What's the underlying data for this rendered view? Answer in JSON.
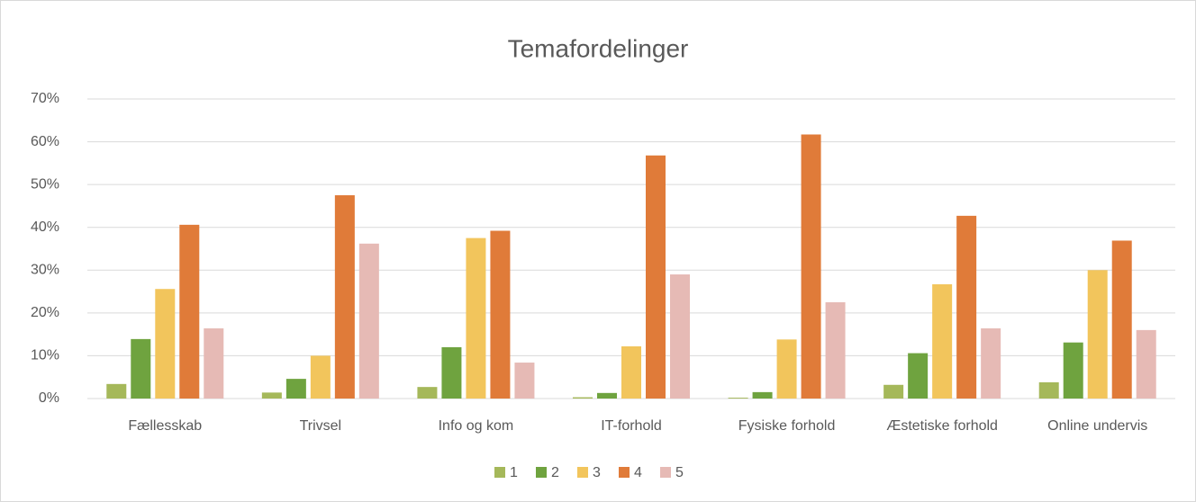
{
  "chart_data": {
    "type": "bar",
    "title": "Temafordelinger",
    "categories": [
      "Fællesskab",
      "Trivsel",
      "Info og kom",
      "IT-forhold",
      "Fysiske forhold",
      "Æstetiske forhold",
      "Online undervis"
    ],
    "series": [
      {
        "name": "1",
        "color": "#a5b85a",
        "values": [
          3.4,
          1.4,
          2.7,
          0.3,
          0.2,
          3.2,
          3.8
        ]
      },
      {
        "name": "2",
        "color": "#6fa33f",
        "values": [
          13.9,
          4.6,
          12,
          1.3,
          1.5,
          10.6,
          13.1
        ]
      },
      {
        "name": "3",
        "color": "#f2c55c",
        "values": [
          25.6,
          10,
          37.5,
          12.2,
          13.8,
          26.7,
          30
        ]
      },
      {
        "name": "4",
        "color": "#e07b39",
        "values": [
          40.6,
          47.5,
          39.2,
          56.8,
          61.7,
          42.7,
          36.9
        ]
      },
      {
        "name": "5",
        "color": "#e6bab5",
        "values": [
          16.4,
          36.2,
          8.4,
          29,
          22.5,
          16.4,
          16
        ]
      }
    ],
    "ylim": [
      0,
      70
    ],
    "yticks": [
      {
        "value": 0,
        "label": "0%"
      },
      {
        "value": 10,
        "label": "10%"
      },
      {
        "value": 20,
        "label": "20%"
      },
      {
        "value": 30,
        "label": "30%"
      },
      {
        "value": 40,
        "label": "40%"
      },
      {
        "value": 50,
        "label": "50%"
      },
      {
        "value": 60,
        "label": "60%"
      },
      {
        "value": 70,
        "label": "70%"
      }
    ],
    "grid": true,
    "legend": "bottom"
  }
}
